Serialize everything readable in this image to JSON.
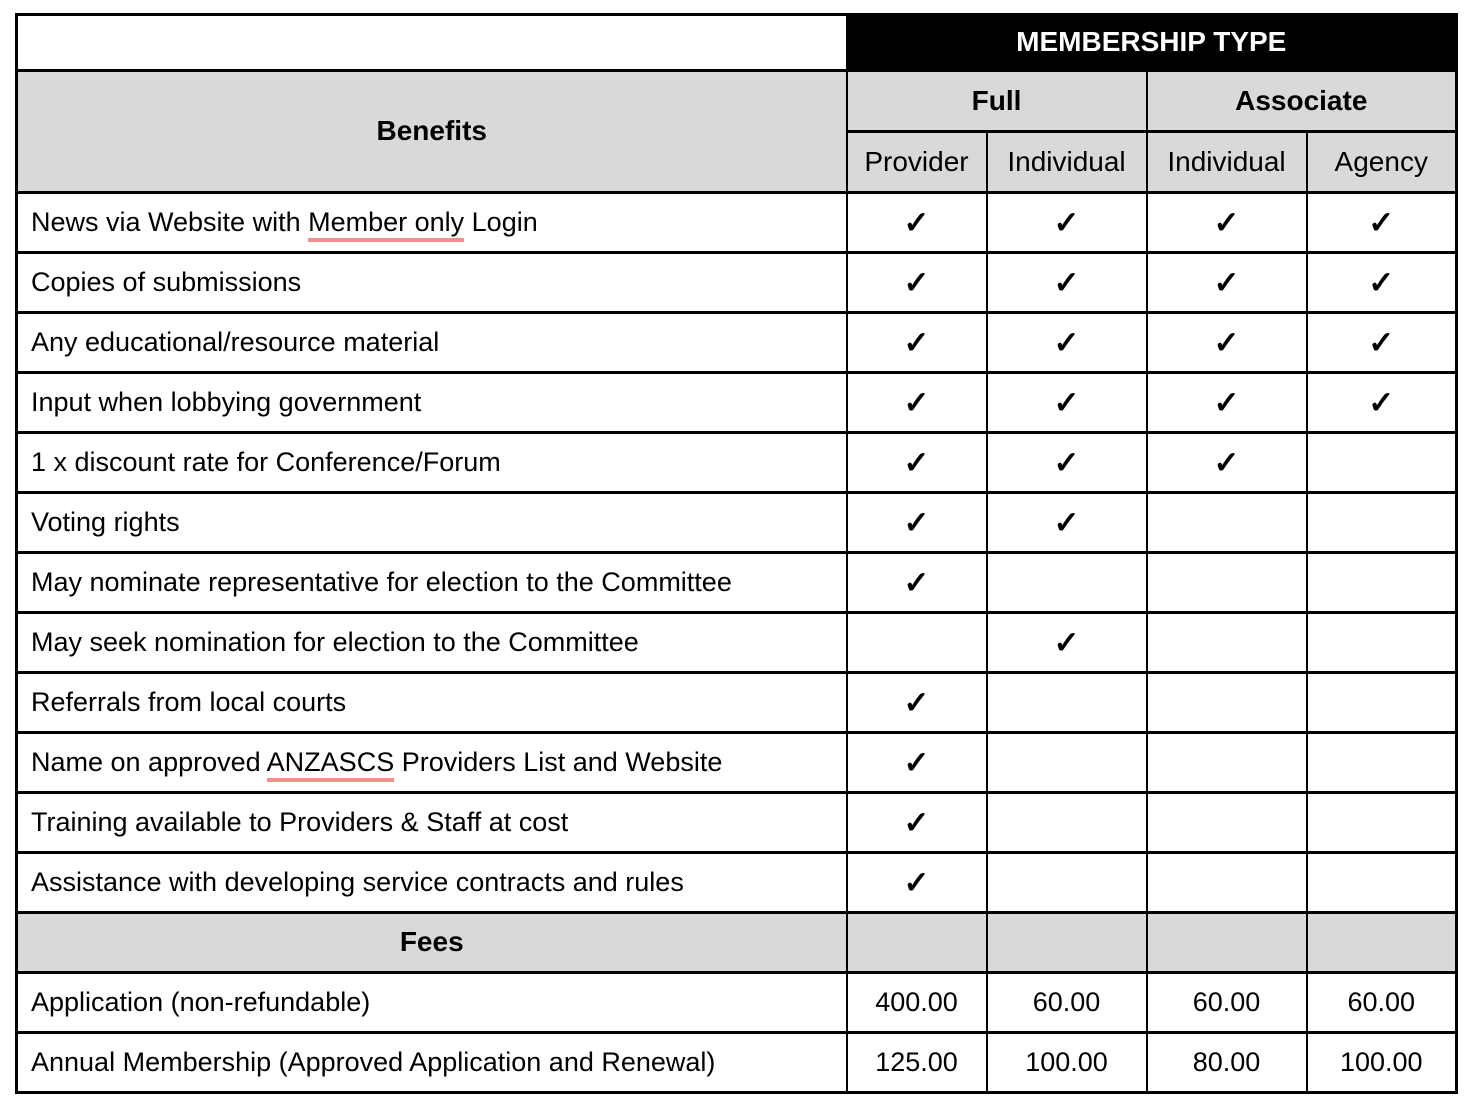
{
  "table": {
    "membership_type_header": "MEMBERSHIP TYPE",
    "benefits_header": "Benefits",
    "fees_header": "Fees",
    "groups": [
      {
        "label": "Full",
        "span": 2
      },
      {
        "label": "Associate",
        "span": 2
      }
    ],
    "columns": [
      "Provider",
      "Individual",
      "Individual",
      "Agency"
    ],
    "check_glyph": "✓",
    "colors": {
      "header_bg": "#000000",
      "header_text": "#ffffff",
      "shaded_bg": "#d9d9d9",
      "border": "#000000",
      "spellcheck_underline": "#f28f8f",
      "text": "#000000"
    },
    "benefits": [
      {
        "label": "News via Website with Member only Login",
        "underline": "Member only",
        "checks": [
          1,
          1,
          1,
          1
        ]
      },
      {
        "label": "Copies of submissions",
        "checks": [
          1,
          1,
          1,
          1
        ]
      },
      {
        "label": "Any educational/resource material",
        "checks": [
          1,
          1,
          1,
          1
        ]
      },
      {
        "label": "Input when lobbying government",
        "checks": [
          1,
          1,
          1,
          1
        ]
      },
      {
        "label": "1 x discount rate for Conference/Forum",
        "checks": [
          1,
          1,
          1,
          0
        ]
      },
      {
        "label": "Voting rights",
        "checks": [
          1,
          1,
          0,
          0
        ]
      },
      {
        "label": "May nominate representative for election to the Committee",
        "checks": [
          1,
          0,
          0,
          0
        ]
      },
      {
        "label": "May seek nomination for election to the Committee",
        "checks": [
          0,
          1,
          0,
          0
        ]
      },
      {
        "label": "Referrals from local courts",
        "checks": [
          1,
          0,
          0,
          0
        ]
      },
      {
        "label": "Name on approved ANZASCS Providers List and Website",
        "underline": "ANZASCS",
        "checks": [
          1,
          0,
          0,
          0
        ]
      },
      {
        "label": "Training available to Providers & Staff at cost",
        "checks": [
          1,
          0,
          0,
          0
        ]
      },
      {
        "label": "Assistance with developing service contracts and rules",
        "checks": [
          1,
          0,
          0,
          0
        ]
      }
    ],
    "fees": [
      {
        "label": "Application (non-refundable)",
        "values": [
          "400.00",
          "60.00",
          "60.00",
          "60.00"
        ]
      },
      {
        "label": "Annual Membership (Approved Application and Renewal)",
        "values": [
          "125.00",
          "100.00",
          "80.00",
          "100.00"
        ]
      }
    ]
  }
}
